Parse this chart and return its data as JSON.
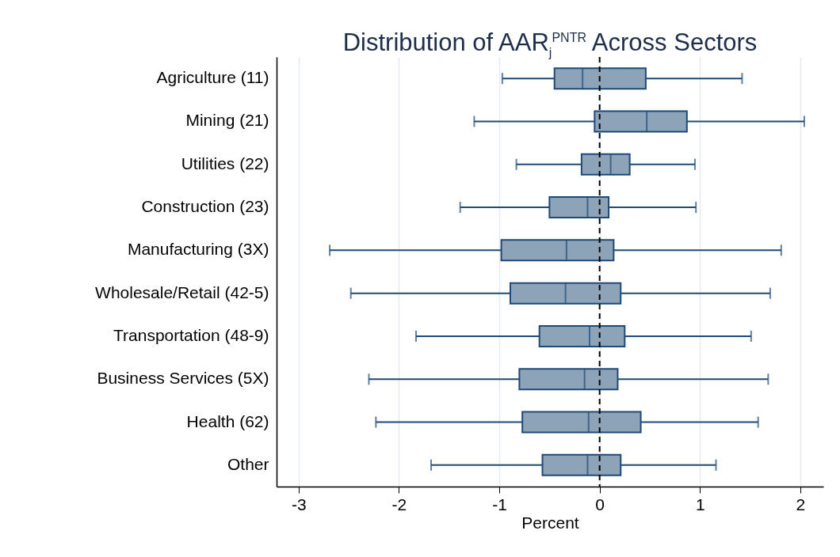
{
  "chart_data": {
    "type": "box",
    "title": "Distribution of AAR$_{j}$$^{PNTR}$ Across Sectors",
    "xlabel": "Percent",
    "orientation": "horizontal",
    "categories": [
      "Agriculture (11)",
      "Mining (21)",
      "Utilities (22)",
      "Construction (23)",
      "Manufacturing (3X)",
      "Wholesale/Retail (42-5)",
      "Transportation (48-9)",
      "Business Services (5X)",
      "Health (62)",
      "Other"
    ],
    "series": [
      {
        "color": "#8ca3b8",
        "boxes": [
          {
            "low": -0.97,
            "q1": -0.45,
            "median": -0.17,
            "q3": 0.46,
            "high": 1.42
          },
          {
            "low": -1.25,
            "q1": -0.05,
            "median": 0.47,
            "q3": 0.87,
            "high": 2.04
          },
          {
            "low": -0.83,
            "q1": -0.18,
            "median": 0.11,
            "q3": 0.3,
            "high": 0.95
          },
          {
            "low": -1.39,
            "q1": -0.5,
            "median": -0.12,
            "q3": 0.09,
            "high": 0.96
          },
          {
            "low": -2.69,
            "q1": -0.98,
            "median": -0.33,
            "q3": 0.14,
            "high": 1.81
          },
          {
            "low": -2.48,
            "q1": -0.89,
            "median": -0.34,
            "q3": 0.21,
            "high": 1.7
          },
          {
            "low": -1.83,
            "q1": -0.6,
            "median": -0.1,
            "q3": 0.25,
            "high": 1.51
          },
          {
            "low": -2.3,
            "q1": -0.8,
            "median": -0.15,
            "q3": 0.18,
            "high": 1.68
          },
          {
            "low": -2.23,
            "q1": -0.77,
            "median": -0.11,
            "q3": 0.41,
            "high": 1.58
          },
          {
            "low": -1.68,
            "q1": -0.57,
            "median": -0.12,
            "q3": 0.21,
            "high": 1.16
          }
        ]
      }
    ],
    "xlim": [
      -3.22,
      2.23
    ],
    "xticks": [
      -3,
      -2,
      -1,
      0,
      1,
      2
    ],
    "grid": "x",
    "ref_lines": [
      {
        "axis": "x",
        "value": 0,
        "color": "#000000",
        "line_style": "dashed"
      }
    ]
  }
}
